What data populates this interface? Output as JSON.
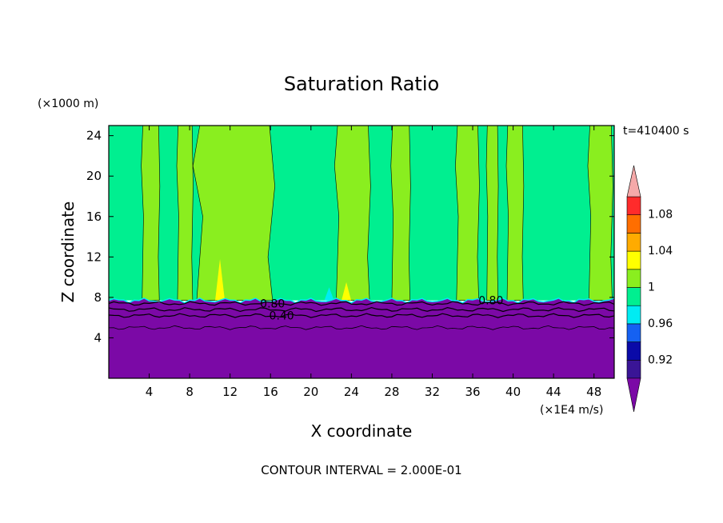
{
  "chart_data": {
    "type": "heatmap",
    "title": "Saturation Ratio",
    "xlabel": "X coordinate",
    "ylabel": "Z coordinate",
    "x_unit": "(×1E4 m/s)",
    "y_unit": "(×1000 m)",
    "time_label": "t=410400 s",
    "footer": "CONTOUR INTERVAL = 2.000E-01",
    "xlim": [
      0,
      50
    ],
    "ylim": [
      0,
      25
    ],
    "x_ticks": [
      4,
      8,
      12,
      16,
      20,
      24,
      28,
      32,
      36,
      40,
      44,
      48
    ],
    "y_ticks": [
      4,
      8,
      12,
      16,
      20,
      24
    ],
    "contour_labels": [
      {
        "text": "0.80",
        "x": 16.2,
        "y": 7.4
      },
      {
        "text": "0.40",
        "x": 17.1,
        "y": 6.2
      },
      {
        "text": "0.80",
        "x": 37.8,
        "y": 7.7
      }
    ],
    "colorbar": {
      "levels": [
        0.92,
        0.96,
        1,
        1.04,
        1.08
      ],
      "bands": [
        {
          "color": "#3a1596"
        },
        {
          "color": "#0a0aa8"
        },
        {
          "color": "#1561f2"
        },
        {
          "color": "#00ecf3"
        },
        {
          "color": "#00ef90"
        },
        {
          "color": "#8aee1f"
        },
        {
          "color": "#ffff00"
        },
        {
          "color": "#ffab00"
        },
        {
          "color": "#ff6e00"
        },
        {
          "color": "#ff2b2b"
        }
      ],
      "under_color": "#7b09a6",
      "over_color": "#f5a9a9"
    },
    "regions": {
      "low_layer_top_km": 7.7,
      "low_layer_color": "#7b09a6",
      "background_color": "#00ef90",
      "column_color": "#8aee1f",
      "columns": [
        {
          "x0": 3.3,
          "x1": 5.0
        },
        {
          "x0": 6.8,
          "x1": 8.3
        },
        {
          "x0": 8.7,
          "x1": 16.2
        },
        {
          "x0": 22.5,
          "x1": 25.8
        },
        {
          "x0": 28.0,
          "x1": 29.8
        },
        {
          "x0": 34.4,
          "x1": 36.6
        },
        {
          "x0": 37.4,
          "x1": 38.5
        },
        {
          "x0": 39.4,
          "x1": 41.0
        },
        {
          "x0": 47.5,
          "x1": 49.8
        }
      ],
      "spikes": [
        {
          "x": 11.0,
          "top": 11.8,
          "color": "#ffff00"
        },
        {
          "x": 23.5,
          "top": 9.5,
          "color": "#ffff00"
        },
        {
          "x": 21.8,
          "top": 9.0,
          "color": "#00ecf3"
        }
      ]
    }
  }
}
